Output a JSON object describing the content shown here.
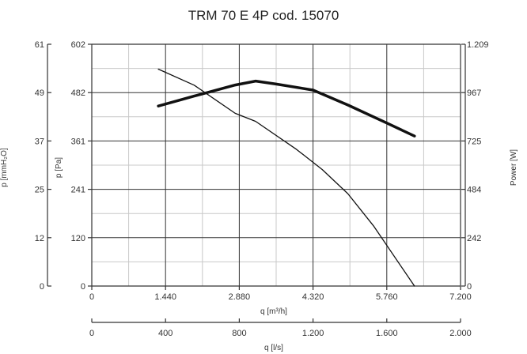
{
  "chart_data": {
    "type": "line",
    "title": "TRM 70 E 4P cod. 15070",
    "xlabel": "q [m³/h]",
    "x2label": "q [l/s]",
    "ylabel_left_outer": "p [mmH₂O]",
    "ylabel_left": "p [Pa]",
    "ylabel_right": "Power [W]",
    "xlim": [
      0,
      7200
    ],
    "x_ticks": [
      "0",
      "1.440",
      "2.880",
      "4.320",
      "5.760",
      "7.200"
    ],
    "x2lim": [
      0,
      2000
    ],
    "x2_ticks": [
      "0",
      "400",
      "800",
      "1.200",
      "1.600",
      "2.000"
    ],
    "ylim_pa": [
      0,
      602
    ],
    "y_pa_ticks": [
      "0",
      "120",
      "241",
      "361",
      "482",
      "602"
    ],
    "y_mm_ticks": [
      "0",
      "12",
      "25",
      "37",
      "49",
      "61"
    ],
    "y_power_ticks": [
      "0",
      "242",
      "484",
      "725",
      "967",
      "1.209"
    ],
    "grid": true,
    "series": [
      {
        "axis": "pressure_pa",
        "x": [
          1300,
          2000,
          2800,
          3200,
          4000,
          4500,
          5000,
          5500,
          6300
        ],
        "values": [
          540,
          500,
          430,
          410,
          340,
          290,
          230,
          150,
          0
        ]
      },
      {
        "axis": "power_w",
        "x": [
          1300,
          2000,
          2800,
          3200,
          3600,
          4320,
          5000,
          5760,
          6300
        ],
        "values": [
          900,
          950,
          1005,
          1025,
          1010,
          980,
          905,
          815,
          750
        ]
      }
    ]
  }
}
